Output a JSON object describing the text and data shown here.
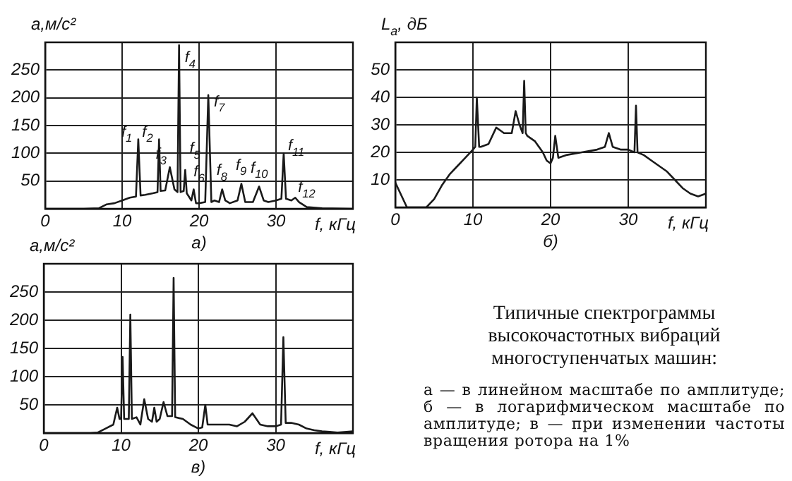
{
  "chart_data": [
    {
      "type": "line",
      "xlabel": "f, кГц",
      "ylabel": "a,м/с²",
      "xlim": [
        0,
        40
      ],
      "xticks": [
        0,
        10,
        20,
        30
      ],
      "ylim": [
        0,
        300
      ],
      "yticks": [
        50,
        100,
        150,
        200,
        250
      ],
      "grid": true,
      "series": [
        {
          "color": "#1a1a1a",
          "x": [
            0,
            5,
            7,
            8,
            9,
            10,
            11,
            11.8,
            12.1,
            12.4,
            13,
            14,
            14.6,
            14.8,
            15,
            15.6,
            16.2,
            16.8,
            17.2,
            17.4,
            17.6,
            18,
            18.2,
            18.4,
            19,
            19.3,
            19.6,
            20,
            20.8,
            21.2,
            21.6,
            22,
            22.6,
            23,
            23.4,
            24,
            25,
            25.5,
            26,
            27,
            27.8,
            28.4,
            29,
            30,
            30.7,
            31,
            31.3,
            32,
            32.5,
            33,
            34,
            36,
            40
          ],
          "values": [
            0,
            0,
            1,
            8,
            10,
            15,
            20,
            22,
            125,
            24,
            25,
            28,
            30,
            125,
            32,
            33,
            75,
            35,
            30,
            295,
            30,
            32,
            70,
            28,
            15,
            35,
            10,
            10,
            12,
            205,
            12,
            15,
            12,
            35,
            15,
            10,
            15,
            45,
            12,
            12,
            40,
            15,
            12,
            15,
            18,
            100,
            18,
            15,
            20,
            12,
            3,
            1,
            0
          ]
        }
      ],
      "annotations": [
        {
          "text": "f$_{1}$",
          "x": 12.1,
          "y": 125
        },
        {
          "text": "f$_{2}$",
          "x": 14.8,
          "y": 125
        },
        {
          "text": "f$_{3}$",
          "x": 16.2,
          "y": 75
        },
        {
          "text": "f$_{4}$",
          "x": 17.4,
          "y": 295
        },
        {
          "text": "f$_{5}$",
          "x": 18.2,
          "y": 70
        },
        {
          "text": "f$_{6}$",
          "x": 19.3,
          "y": 35
        },
        {
          "text": "f$_{7}$",
          "x": 21.2,
          "y": 205
        },
        {
          "text": "f$_{8}$",
          "x": 23,
          "y": 35
        },
        {
          "text": "f$_{9}$",
          "x": 25.5,
          "y": 45
        },
        {
          "text": "f$_{10}$",
          "x": 27.8,
          "y": 40
        },
        {
          "text": "f$_{11}$",
          "x": 31,
          "y": 100
        },
        {
          "text": "f$_{12}$",
          "x": 32.5,
          "y": 20
        },
        "а)"
      ]
    },
    {
      "type": "line",
      "xlabel": "f, кГц",
      "ylabel": "L$_{a}$, дБ",
      "xlim": [
        0,
        40
      ],
      "xticks": [
        0,
        10,
        20,
        30
      ],
      "ylim": [
        0,
        60
      ],
      "yticks": [
        10,
        20,
        30,
        40,
        50
      ],
      "grid": true,
      "series": [
        {
          "color": "#1a1a1a",
          "x": [
            0,
            1,
            1.5,
            4,
            5,
            6,
            7,
            8,
            9,
            10,
            10.3,
            10.5,
            10.8,
            11,
            12,
            13,
            13.5,
            14,
            15,
            15.5,
            16,
            16.4,
            16.6,
            16.8,
            17,
            18,
            19,
            19.5,
            20,
            20.3,
            20.6,
            21,
            22,
            24,
            26,
            27,
            27.5,
            28,
            29,
            30,
            30.8,
            31,
            31.2,
            32,
            33,
            34,
            35,
            36,
            37,
            38,
            39,
            40
          ],
          "values": [
            9,
            3,
            0,
            0,
            3,
            8,
            12,
            15,
            18,
            21,
            22,
            40,
            22,
            22,
            23,
            29,
            28,
            27,
            27,
            35,
            30,
            27,
            46,
            27,
            26,
            24,
            20,
            17,
            16,
            18,
            26,
            18,
            19,
            20,
            21,
            22,
            27,
            22,
            21,
            21,
            20,
            37,
            20,
            19,
            17,
            15,
            13,
            10,
            7,
            5,
            4,
            5
          ]
        }
      ],
      "annotations": [
        "б)"
      ]
    },
    {
      "type": "line",
      "xlabel": "f, кГц",
      "ylabel": "a,м/с²",
      "xlim": [
        0,
        40
      ],
      "xticks": [
        0,
        10,
        20,
        30
      ],
      "ylim": [
        0,
        300
      ],
      "yticks": [
        50,
        100,
        150,
        200,
        250
      ],
      "grid": true,
      "series": [
        {
          "color": "#1a1a1a",
          "x": [
            0,
            6,
            7,
            8,
            9,
            9.5,
            9.8,
            10,
            10.2,
            10.4,
            11,
            11.2,
            11.4,
            12,
            12.5,
            13,
            13.5,
            14,
            14.3,
            14.6,
            15,
            15.5,
            16,
            16.6,
            16.8,
            17,
            18,
            19,
            20,
            20.5,
            20.9,
            21.2,
            22,
            24,
            25,
            26,
            27,
            28,
            29,
            30,
            30.7,
            31,
            31.3,
            32,
            33,
            34,
            35,
            36,
            37,
            38,
            40
          ],
          "values": [
            0,
            0,
            1,
            8,
            15,
            45,
            25,
            25,
            135,
            25,
            25,
            210,
            25,
            28,
            15,
            60,
            25,
            20,
            45,
            20,
            25,
            55,
            30,
            30,
            275,
            28,
            25,
            15,
            8,
            10,
            50,
            15,
            15,
            15,
            12,
            20,
            35,
            15,
            12,
            12,
            15,
            170,
            18,
            18,
            15,
            8,
            5,
            3,
            2,
            1,
            3
          ]
        }
      ],
      "annotations": [
        "в)"
      ]
    },
    {
      "type": "other",
      "title": "Типичные спектрограммы высокочастотных вибраций многоступенчатых машин:",
      "annotations": [
        "а — в линейном масштабе по амплитуде; б — в логарифмическом масштабе по амплитуде; в — при изменении частоты вращения ротора на 1%"
      ]
    }
  ]
}
